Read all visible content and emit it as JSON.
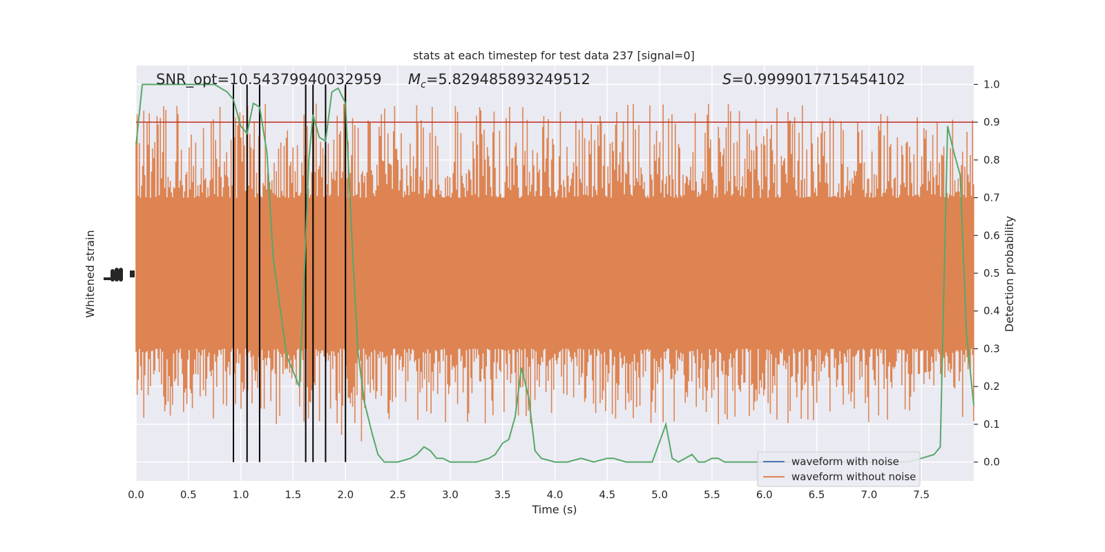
{
  "chart_data": {
    "type": "line",
    "title": "stats at each timestep for test data 237 [signal=0]",
    "xlabel": "Time (s)",
    "ylabel_left": "Whitened strain",
    "ylabel_right": "Detection probability",
    "xlim": [
      0.0,
      8.0
    ],
    "ylim_right": [
      -0.05,
      1.05
    ],
    "x_ticks": [
      "0.0",
      "0.5",
      "1.0",
      "1.5",
      "2.0",
      "2.5",
      "3.0",
      "3.5",
      "4.0",
      "4.5",
      "5.0",
      "5.5",
      "6.0",
      "6.5",
      "7.0",
      "7.5"
    ],
    "y_ticks_right": [
      "0.0",
      "0.1",
      "0.2",
      "0.3",
      "0.4",
      "0.5",
      "0.6",
      "0.7",
      "0.8",
      "0.9",
      "1.0"
    ],
    "grid": true,
    "legend_position": "lower-right",
    "annotations": {
      "snr": "SNR_opt=10.54379940032959",
      "mc_symbol": "M",
      "mc_sub": "c",
      "mc_value": "=5.829485893249512",
      "s_symbol": "S",
      "s_value": "=0.9999017715454102"
    },
    "threshold": 0.9,
    "vertical_markers": [
      0.93,
      1.06,
      1.18,
      1.62,
      1.69,
      1.81,
      2.0
    ],
    "series": [
      {
        "name": "waveform with noise",
        "color": "#4c72b0",
        "values": []
      },
      {
        "name": "waveform without noise",
        "color": "#dd8452",
        "kind": "noise-band",
        "core_range": [
          0.3,
          0.7
        ],
        "approx_extremes": [
          0.04,
          1.0
        ]
      },
      {
        "color": "#55a868",
        "x": [
          0.0,
          0.06,
          0.12,
          0.25,
          0.5,
          0.75,
          0.87,
          0.93,
          1.0,
          1.06,
          1.12,
          1.18,
          1.25,
          1.31,
          1.37,
          1.44,
          1.5,
          1.56,
          1.6,
          1.65,
          1.69,
          1.75,
          1.81,
          1.87,
          1.93,
          2.0,
          2.06,
          2.12,
          2.18,
          2.25,
          2.31,
          2.37,
          2.5,
          2.62,
          2.68,
          2.75,
          2.81,
          2.87,
          2.93,
          3.0,
          3.12,
          3.25,
          3.37,
          3.43,
          3.5,
          3.56,
          3.62,
          3.68,
          3.75,
          3.81,
          3.87,
          4.0,
          4.12,
          4.25,
          4.37,
          4.5,
          4.56,
          4.68,
          4.81,
          4.93,
          5.06,
          5.12,
          5.18,
          5.31,
          5.37,
          5.43,
          5.5,
          5.56,
          5.62,
          5.75,
          5.87,
          6.0,
          6.12,
          6.25,
          6.5,
          6.75,
          7.0,
          7.25,
          7.37,
          7.5,
          7.62,
          7.68,
          7.75,
          7.81,
          7.87,
          7.93,
          8.0
        ],
        "values": [
          0.84,
          1.0,
          1.0,
          1.0,
          1.0,
          1.0,
          0.98,
          0.96,
          0.89,
          0.87,
          0.95,
          0.94,
          0.82,
          0.54,
          0.42,
          0.28,
          0.24,
          0.2,
          0.45,
          0.8,
          0.92,
          0.86,
          0.85,
          0.98,
          0.99,
          0.95,
          0.6,
          0.29,
          0.16,
          0.08,
          0.02,
          0.0,
          0.0,
          0.01,
          0.02,
          0.04,
          0.03,
          0.01,
          0.01,
          0.0,
          0.0,
          0.0,
          0.01,
          0.02,
          0.05,
          0.06,
          0.12,
          0.25,
          0.17,
          0.03,
          0.01,
          0.0,
          0.0,
          0.01,
          0.0,
          0.01,
          0.01,
          0.0,
          0.0,
          0.0,
          0.1,
          0.01,
          0.0,
          0.02,
          0.0,
          0.0,
          0.01,
          0.01,
          0.0,
          0.0,
          0.0,
          0.0,
          0.0,
          0.0,
          0.0,
          0.0,
          0.0,
          0.0,
          0.0,
          0.01,
          0.02,
          0.04,
          0.89,
          0.82,
          0.76,
          0.34,
          0.15
        ]
      }
    ]
  }
}
